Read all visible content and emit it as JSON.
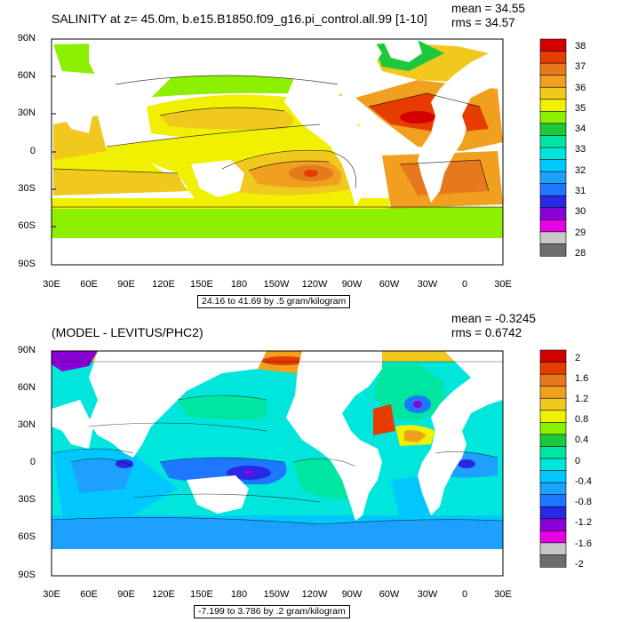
{
  "colors": {
    "palette": [
      "#6e6e6e",
      "#c8c8c8",
      "#e600e6",
      "#8a00d6",
      "#2828e6",
      "#1e78ff",
      "#1ea0ff",
      "#00c8ff",
      "#00e6dc",
      "#00e6a0",
      "#1ec83c",
      "#8cf000",
      "#f0f000",
      "#f0c81e",
      "#f0a01e",
      "#e6781e",
      "#e63c00",
      "#d20000"
    ]
  },
  "axes": {
    "lat_labels": [
      "90N",
      "60N",
      "30N",
      "0",
      "30S",
      "60S",
      "90S"
    ],
    "lon_labels": [
      "30E",
      "60E",
      "90E",
      "120E",
      "150E",
      "180",
      "150W",
      "120W",
      "90W",
      "60W",
      "30W",
      "0",
      "30E"
    ]
  },
  "panels": {
    "top": {
      "title": "SALINITY at z=  45.0m, b.e15.B1850.f09_g16.pi_control.all.99 [1-10]",
      "mean": "mean = 34.55",
      "rms": "rms = 34.57",
      "range": "24.16 to 41.69 by .5 gram/kilogram",
      "cbar_labels": [
        "38",
        "37",
        "36",
        "35",
        "34",
        "33",
        "32",
        "31",
        "30",
        "29",
        "28"
      ]
    },
    "bottom": {
      "title": "(MODEL - LEVITUS/PHC2)",
      "mean": "mean = -0.3245",
      "rms": "rms = 0.6742",
      "range": "-7.199 to 3.786 by .2 gram/kilogram",
      "cbar_labels": [
        "2",
        "1.6",
        "1.2",
        "0.8",
        "0.4",
        "0",
        "-0.4",
        "-0.8",
        "-1.2",
        "-1.6",
        "-2"
      ]
    }
  },
  "chart_data": [
    {
      "type": "heatmap",
      "title": "SALINITY at z=  45.0m, b.e15.B1850.f09_g16.pi_control.all.99 [1-10]",
      "mean": 34.55,
      "rms": 34.57,
      "contour_range": "24.16 to 41.69 by .5 gram/kilogram",
      "x_tick_labels": [
        "30E",
        "60E",
        "90E",
        "120E",
        "150E",
        "180",
        "150W",
        "120W",
        "90W",
        "60W",
        "30W",
        "0",
        "30E"
      ],
      "y_tick_labels": [
        "90N",
        "60N",
        "30N",
        "0",
        "30S",
        "60S",
        "90S"
      ],
      "xlim": [
        30,
        390
      ],
      "ylim": [
        -90,
        90
      ],
      "colorbar_labels": [
        38,
        37,
        36,
        35,
        34,
        33,
        32,
        31,
        30,
        29,
        28
      ],
      "colorbar_range": [
        28,
        38
      ]
    },
    {
      "type": "heatmap",
      "title": "(MODEL - LEVITUS/PHC2)",
      "mean": -0.3245,
      "rms": 0.6742,
      "contour_range": "-7.199 to 3.786 by .2 gram/kilogram",
      "x_tick_labels": [
        "30E",
        "60E",
        "90E",
        "120E",
        "150E",
        "180",
        "150W",
        "120W",
        "90W",
        "60W",
        "30W",
        "0",
        "30E"
      ],
      "y_tick_labels": [
        "90N",
        "60N",
        "30N",
        "0",
        "30S",
        "60S",
        "90S"
      ],
      "xlim": [
        30,
        390
      ],
      "ylim": [
        -90,
        90
      ],
      "colorbar_labels": [
        2,
        1.6,
        1.2,
        0.8,
        0.4,
        0,
        -0.4,
        -0.8,
        -1.2,
        -1.6,
        -2
      ],
      "colorbar_range": [
        -2,
        2
      ]
    }
  ]
}
